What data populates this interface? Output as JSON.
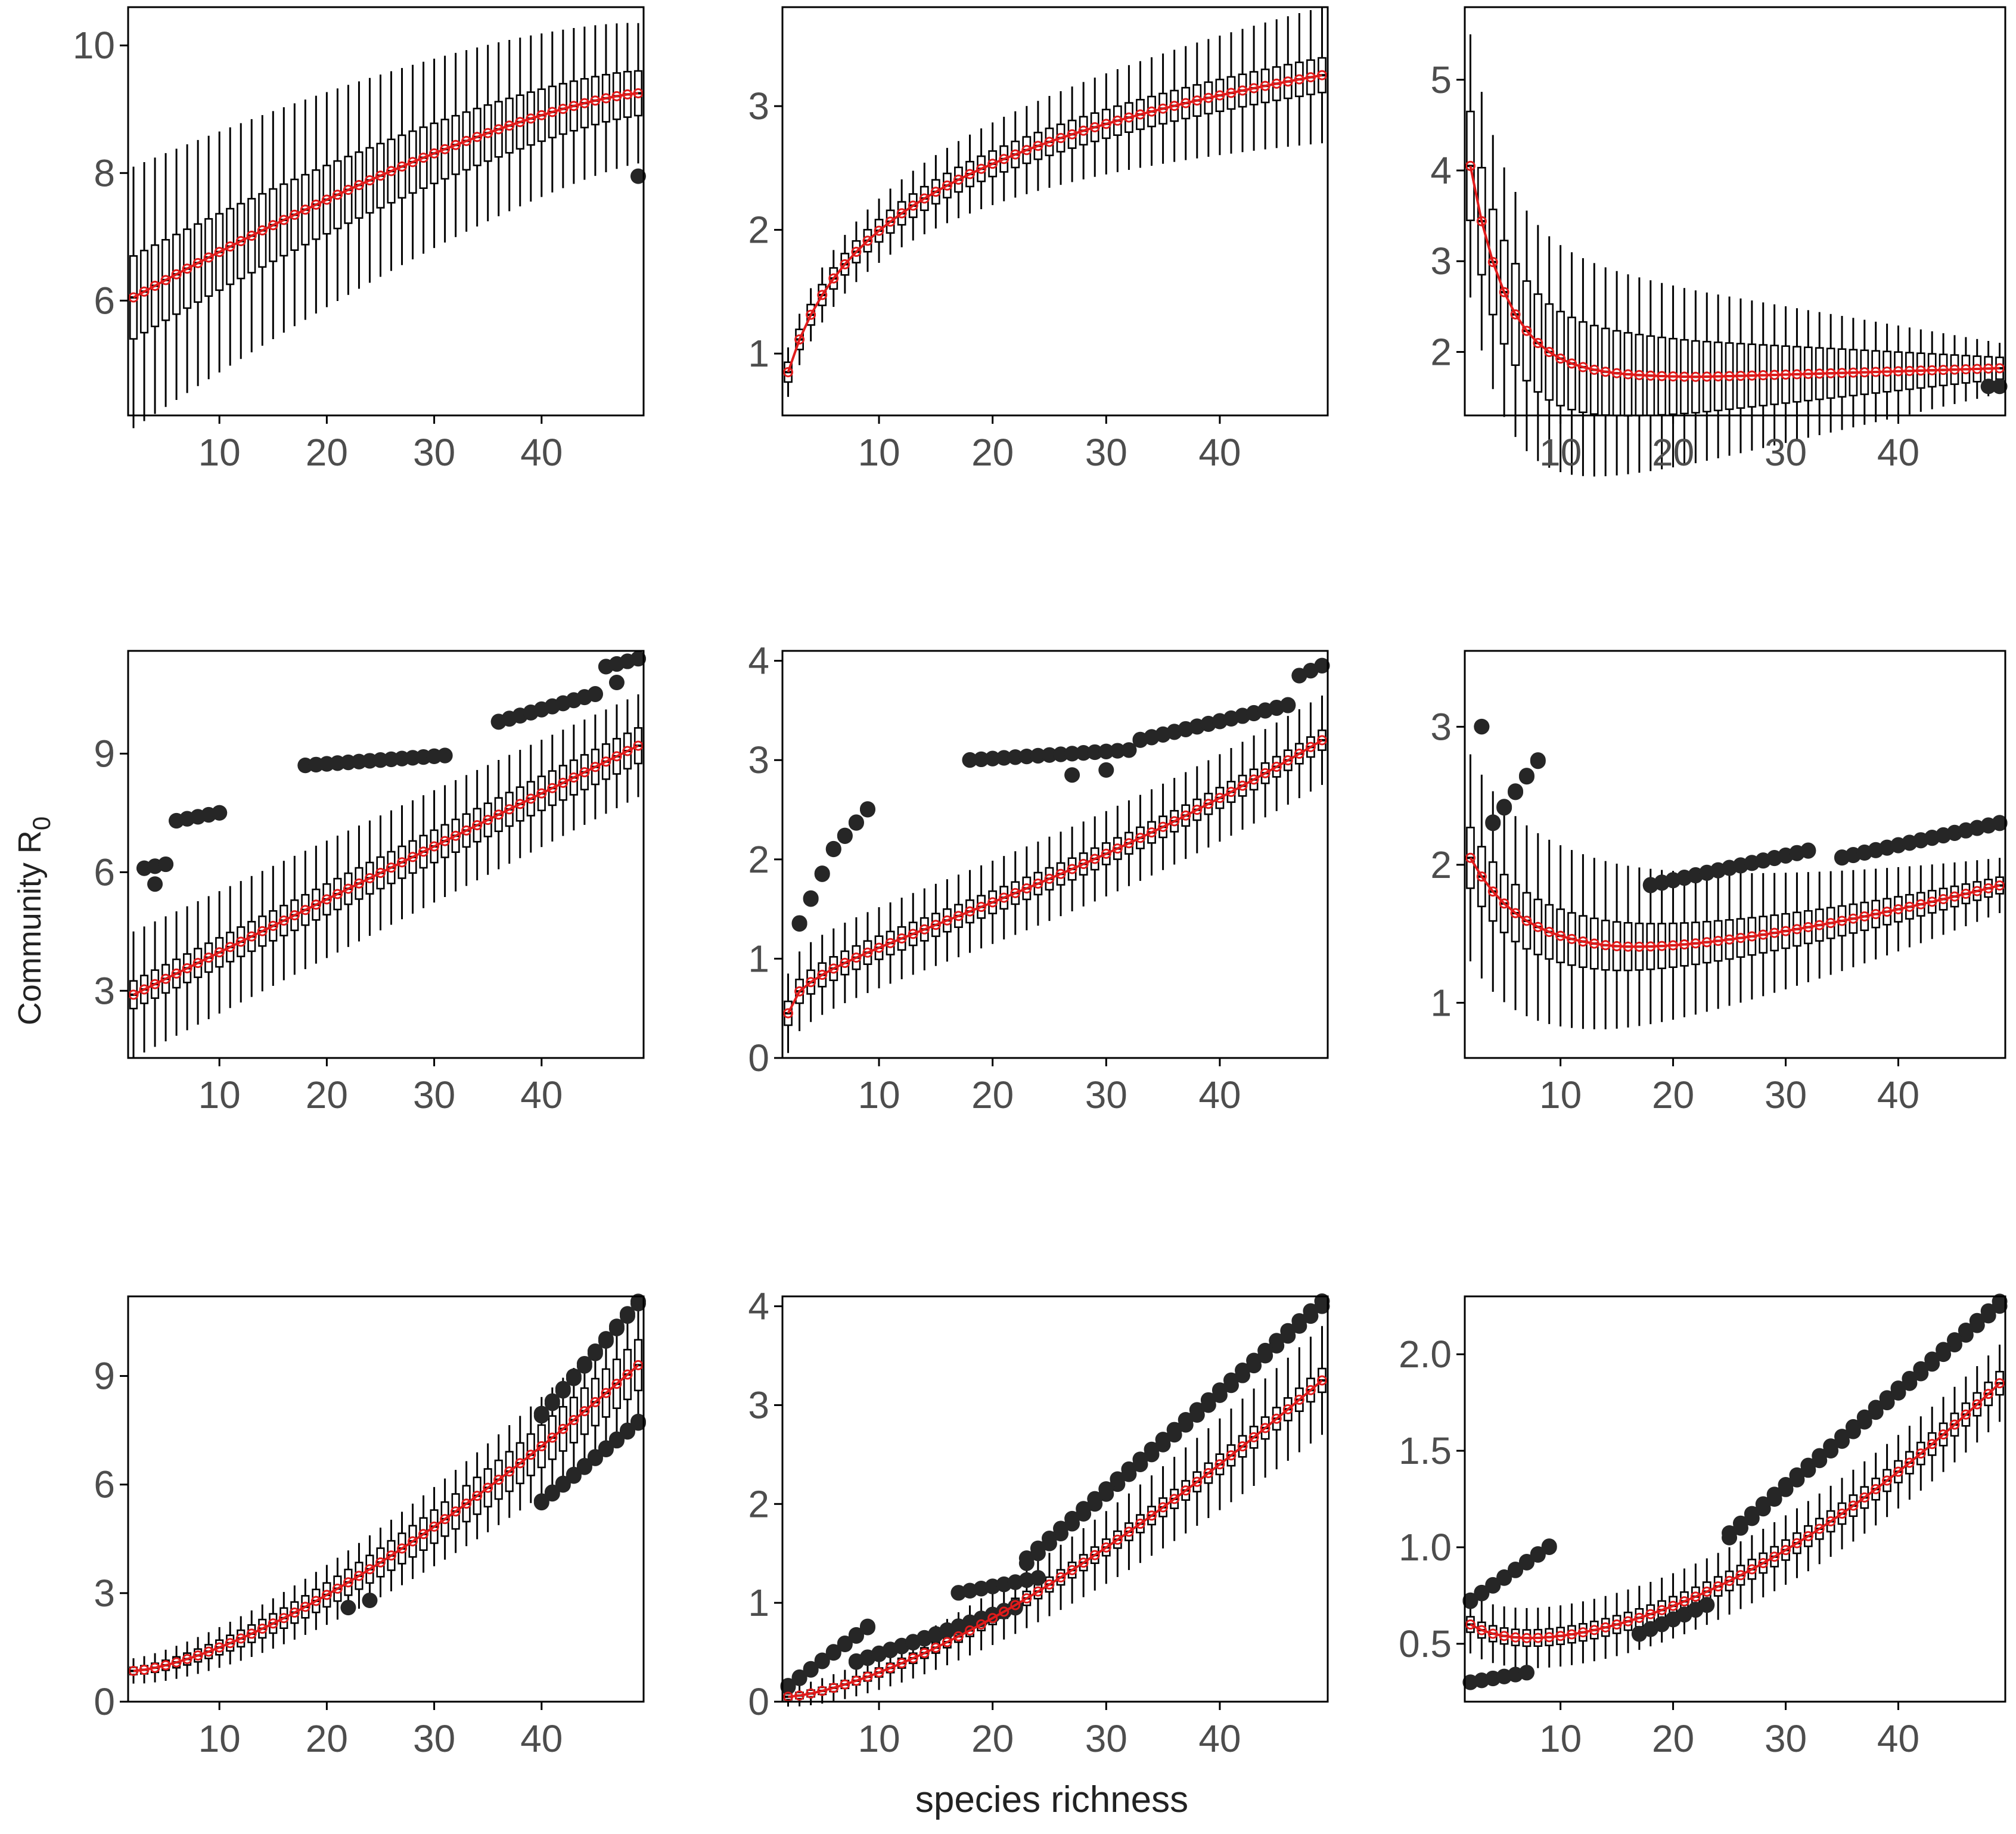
{
  "figure": {
    "ylabel": "Community R",
    "ylabel_sub": "0",
    "xlabel": "species richness"
  },
  "colors": {
    "box": "#000000",
    "outlier": "#262626",
    "mean": "#e01b1b",
    "axis_text": "#4d4d4d"
  },
  "chart_data": [
    {
      "id": "r1c1",
      "type": "boxplot",
      "x_range": [
        2,
        49
      ],
      "xlim": [
        1.5,
        49.5
      ],
      "ylim": [
        4.2,
        10.6
      ],
      "x_ticks": [
        10,
        20,
        30,
        40
      ],
      "y_ticks": [
        6,
        8,
        10
      ],
      "y_tick_labels": [
        "6",
        "8",
        "10"
      ],
      "mean_trend": {
        "start": 6.05,
        "end": 9.25,
        "shape": "concave"
      },
      "box_halfheight": [
        0.65,
        0.35
      ],
      "whisker": [
        2.05,
        1.1
      ],
      "outliers": [
        {
          "x": 49,
          "y": 7.95
        }
      ]
    },
    {
      "id": "r1c2",
      "type": "boxplot",
      "x_range": [
        2,
        49
      ],
      "xlim": [
        1.5,
        49.5
      ],
      "ylim": [
        0.5,
        3.8
      ],
      "x_ticks": [
        10,
        20,
        30,
        40
      ],
      "y_ticks": [
        1,
        2,
        3
      ],
      "y_tick_labels": [
        "1",
        "2",
        "3"
      ],
      "mean_trend": {
        "start": 0.85,
        "end": 3.25,
        "shape": "log"
      },
      "box_halfheight": [
        0.08,
        0.14
      ],
      "whisker": [
        0.2,
        0.55
      ],
      "outliers": []
    },
    {
      "id": "r1c3",
      "type": "boxplot",
      "x_range": [
        2,
        49
      ],
      "xlim": [
        1.5,
        49.5
      ],
      "ylim": [
        1.3,
        5.8
      ],
      "x_ticks": [
        10,
        20,
        30,
        40
      ],
      "y_ticks": [
        2,
        3,
        4,
        5
      ],
      "y_tick_labels": [
        "2",
        "3",
        "4",
        "5"
      ],
      "mean_trend": {
        "start": 4.05,
        "end": 1.82,
        "shape": "decay",
        "floor": 1.72,
        "min_x": 22
      },
      "box_halfheight": [
        0.6,
        0.12
      ],
      "whisker": [
        1.45,
        0.28
      ],
      "outliers": [
        {
          "x": 48,
          "y": 1.62
        },
        {
          "x": 49,
          "y": 1.62
        }
      ]
    },
    {
      "id": "r2c1",
      "type": "boxplot",
      "x_range": [
        2,
        49
      ],
      "xlim": [
        1.5,
        49.5
      ],
      "ylim": [
        1.3,
        11.6
      ],
      "x_ticks": [
        10,
        20,
        30,
        40
      ],
      "y_ticks": [
        3,
        6,
        9
      ],
      "y_tick_labels": [
        "3",
        "6",
        "9"
      ],
      "mean_trend": {
        "start": 2.9,
        "end": 9.2,
        "shape": "linear"
      },
      "box_halfheight": [
        0.35,
        0.45
      ],
      "whisker": [
        1.6,
        1.3
      ],
      "outlier_groups": [
        {
          "x_from": 3,
          "x_to": 5,
          "y_from": 6.1,
          "y_to": 6.2
        },
        {
          "x_from": 6,
          "x_to": 10,
          "y_from": 7.3,
          "y_to": 7.5
        },
        {
          "x_from": 18,
          "x_to": 31,
          "y_from": 8.7,
          "y_to": 8.95
        },
        {
          "x_from": 36,
          "x_to": 45,
          "y_from": 9.8,
          "y_to": 10.5
        },
        {
          "x_from": 46,
          "x_to": 49,
          "y_from": 11.2,
          "y_to": 11.4
        }
      ],
      "outliers": [
        {
          "x": 4,
          "y": 5.7
        },
        {
          "x": 47,
          "y": 10.8
        }
      ]
    },
    {
      "id": "r2c2",
      "type": "boxplot",
      "x_range": [
        2,
        49
      ],
      "xlim": [
        1.5,
        49.5
      ],
      "ylim": [
        0,
        4.1
      ],
      "x_ticks": [
        10,
        20,
        30,
        40
      ],
      "y_ticks": [
        0,
        1,
        2,
        3,
        4
      ],
      "y_tick_labels": [
        "0",
        "1",
        "2",
        "3",
        "4"
      ],
      "mean_trend": {
        "start": 0.45,
        "end": 3.2,
        "shape": "sqrtlin"
      },
      "box_halfheight": [
        0.12,
        0.1
      ],
      "whisker": [
        0.4,
        0.45
      ],
      "outlier_groups": [
        {
          "x_from": 3,
          "x_to": 5,
          "y_from": 1.35,
          "y_to": 1.85
        },
        {
          "x_from": 6,
          "x_to": 9,
          "y_from": 2.1,
          "y_to": 2.5
        },
        {
          "x_from": 18,
          "x_to": 32,
          "y_from": 3.0,
          "y_to": 3.1
        },
        {
          "x_from": 33,
          "x_to": 46,
          "y_from": 3.2,
          "y_to": 3.55
        },
        {
          "x_from": 47,
          "x_to": 49,
          "y_from": 3.85,
          "y_to": 3.95
        }
      ],
      "outliers": [
        {
          "x": 27,
          "y": 2.85
        },
        {
          "x": 30,
          "y": 2.9
        }
      ]
    },
    {
      "id": "r2c3",
      "type": "boxplot",
      "x_range": [
        2,
        49
      ],
      "xlim": [
        1.5,
        49.5
      ],
      "ylim": [
        0.6,
        3.55
      ],
      "x_ticks": [
        10,
        20,
        30,
        40
      ],
      "y_ticks": [
        1,
        2,
        3
      ],
      "y_tick_labels": [
        "1",
        "2",
        "3"
      ],
      "mean_trend": {
        "start": 2.05,
        "end": 1.85,
        "shape": "ushape",
        "floor": 1.37,
        "min_x": 14
      },
      "box_halfheight": [
        0.22,
        0.06
      ],
      "whisker": [
        0.75,
        0.2
      ],
      "outlier_groups": [
        {
          "x_from": 3,
          "x_to": 3,
          "y_from": 3.0,
          "y_to": 3.1
        },
        {
          "x_from": 4,
          "x_to": 8,
          "y_from": 2.3,
          "y_to": 2.75
        },
        {
          "x_from": 18,
          "x_to": 32,
          "y_from": 1.85,
          "y_to": 2.1
        },
        {
          "x_from": 35,
          "x_to": 49,
          "y_from": 2.05,
          "y_to": 2.3
        }
      ],
      "outliers": []
    },
    {
      "id": "r3c1",
      "type": "boxplot",
      "x_range": [
        2,
        49
      ],
      "xlim": [
        1.5,
        49.5
      ],
      "ylim": [
        0,
        11.2
      ],
      "x_ticks": [
        10,
        20,
        30,
        40
      ],
      "y_ticks": [
        0,
        3,
        6,
        9
      ],
      "y_tick_labels": [
        "0",
        "3",
        "6",
        "9"
      ],
      "mean_trend": {
        "start": 0.85,
        "end": 9.3,
        "shape": "convex"
      },
      "box_halfheight": [
        0.1,
        0.7
      ],
      "whisker": [
        0.35,
        1.6
      ],
      "outlier_groups": [
        {
          "x_from": 40,
          "x_to": 49,
          "y_from": 7.9,
          "y_to": 11.0
        },
        {
          "x_from": 40,
          "x_to": 49,
          "y_from": 5.5,
          "y_to": 7.7
        }
      ],
      "outliers": [
        {
          "x": 22,
          "y": 2.6
        },
        {
          "x": 24,
          "y": 2.8
        }
      ]
    },
    {
      "id": "r3c2",
      "type": "boxplot",
      "x_range": [
        2,
        49
      ],
      "xlim": [
        1.5,
        49.5
      ],
      "ylim": [
        0,
        4.1
      ],
      "x_ticks": [
        10,
        20,
        30,
        40
      ],
      "y_ticks": [
        0,
        1,
        2,
        3,
        4
      ],
      "y_tick_labels": [
        "0",
        "1",
        "2",
        "3",
        "4"
      ],
      "mean_trend": {
        "start": 0.05,
        "end": 3.25,
        "shape": "convex"
      },
      "box_halfheight": [
        0.03,
        0.12
      ],
      "whisker": [
        0.1,
        0.55
      ],
      "outlier_groups": [
        {
          "x_from": 2,
          "x_to": 9,
          "y_from": 0.15,
          "y_to": 0.75
        },
        {
          "x_from": 8,
          "x_to": 22,
          "y_from": 0.4,
          "y_to": 0.95
        },
        {
          "x_from": 23,
          "x_to": 49,
          "y_from": 1.4,
          "y_to": 4.0
        },
        {
          "x_from": 17,
          "x_to": 24,
          "y_from": 1.1,
          "y_to": 1.25
        }
      ],
      "outliers": []
    },
    {
      "id": "r3c3",
      "type": "boxplot",
      "x_range": [
        2,
        49
      ],
      "xlim": [
        1.5,
        49.5
      ],
      "ylim": [
        0.2,
        2.3
      ],
      "x_ticks": [
        10,
        20,
        30,
        40
      ],
      "y_ticks": [
        0.5,
        1.0,
        1.5,
        2.0
      ],
      "y_tick_labels": [
        "0.5",
        "1.0",
        "1.5",
        "2.0"
      ],
      "mean_trend": {
        "start": 0.6,
        "end": 1.85,
        "shape": "ushape2",
        "floor": 0.52,
        "min_x": 6
      },
      "box_halfheight": [
        0.04,
        0.06
      ],
      "whisker": [
        0.15,
        0.2
      ],
      "outlier_groups": [
        {
          "x_from": 2,
          "x_to": 9,
          "y_from": 0.72,
          "y_to": 1.0
        },
        {
          "x_from": 2,
          "x_to": 7,
          "y_from": 0.3,
          "y_to": 0.35
        },
        {
          "x_from": 17,
          "x_to": 23,
          "y_from": 0.55,
          "y_to": 0.7
        },
        {
          "x_from": 25,
          "x_to": 49,
          "y_from": 1.05,
          "y_to": 2.25
        }
      ],
      "outliers": []
    }
  ]
}
